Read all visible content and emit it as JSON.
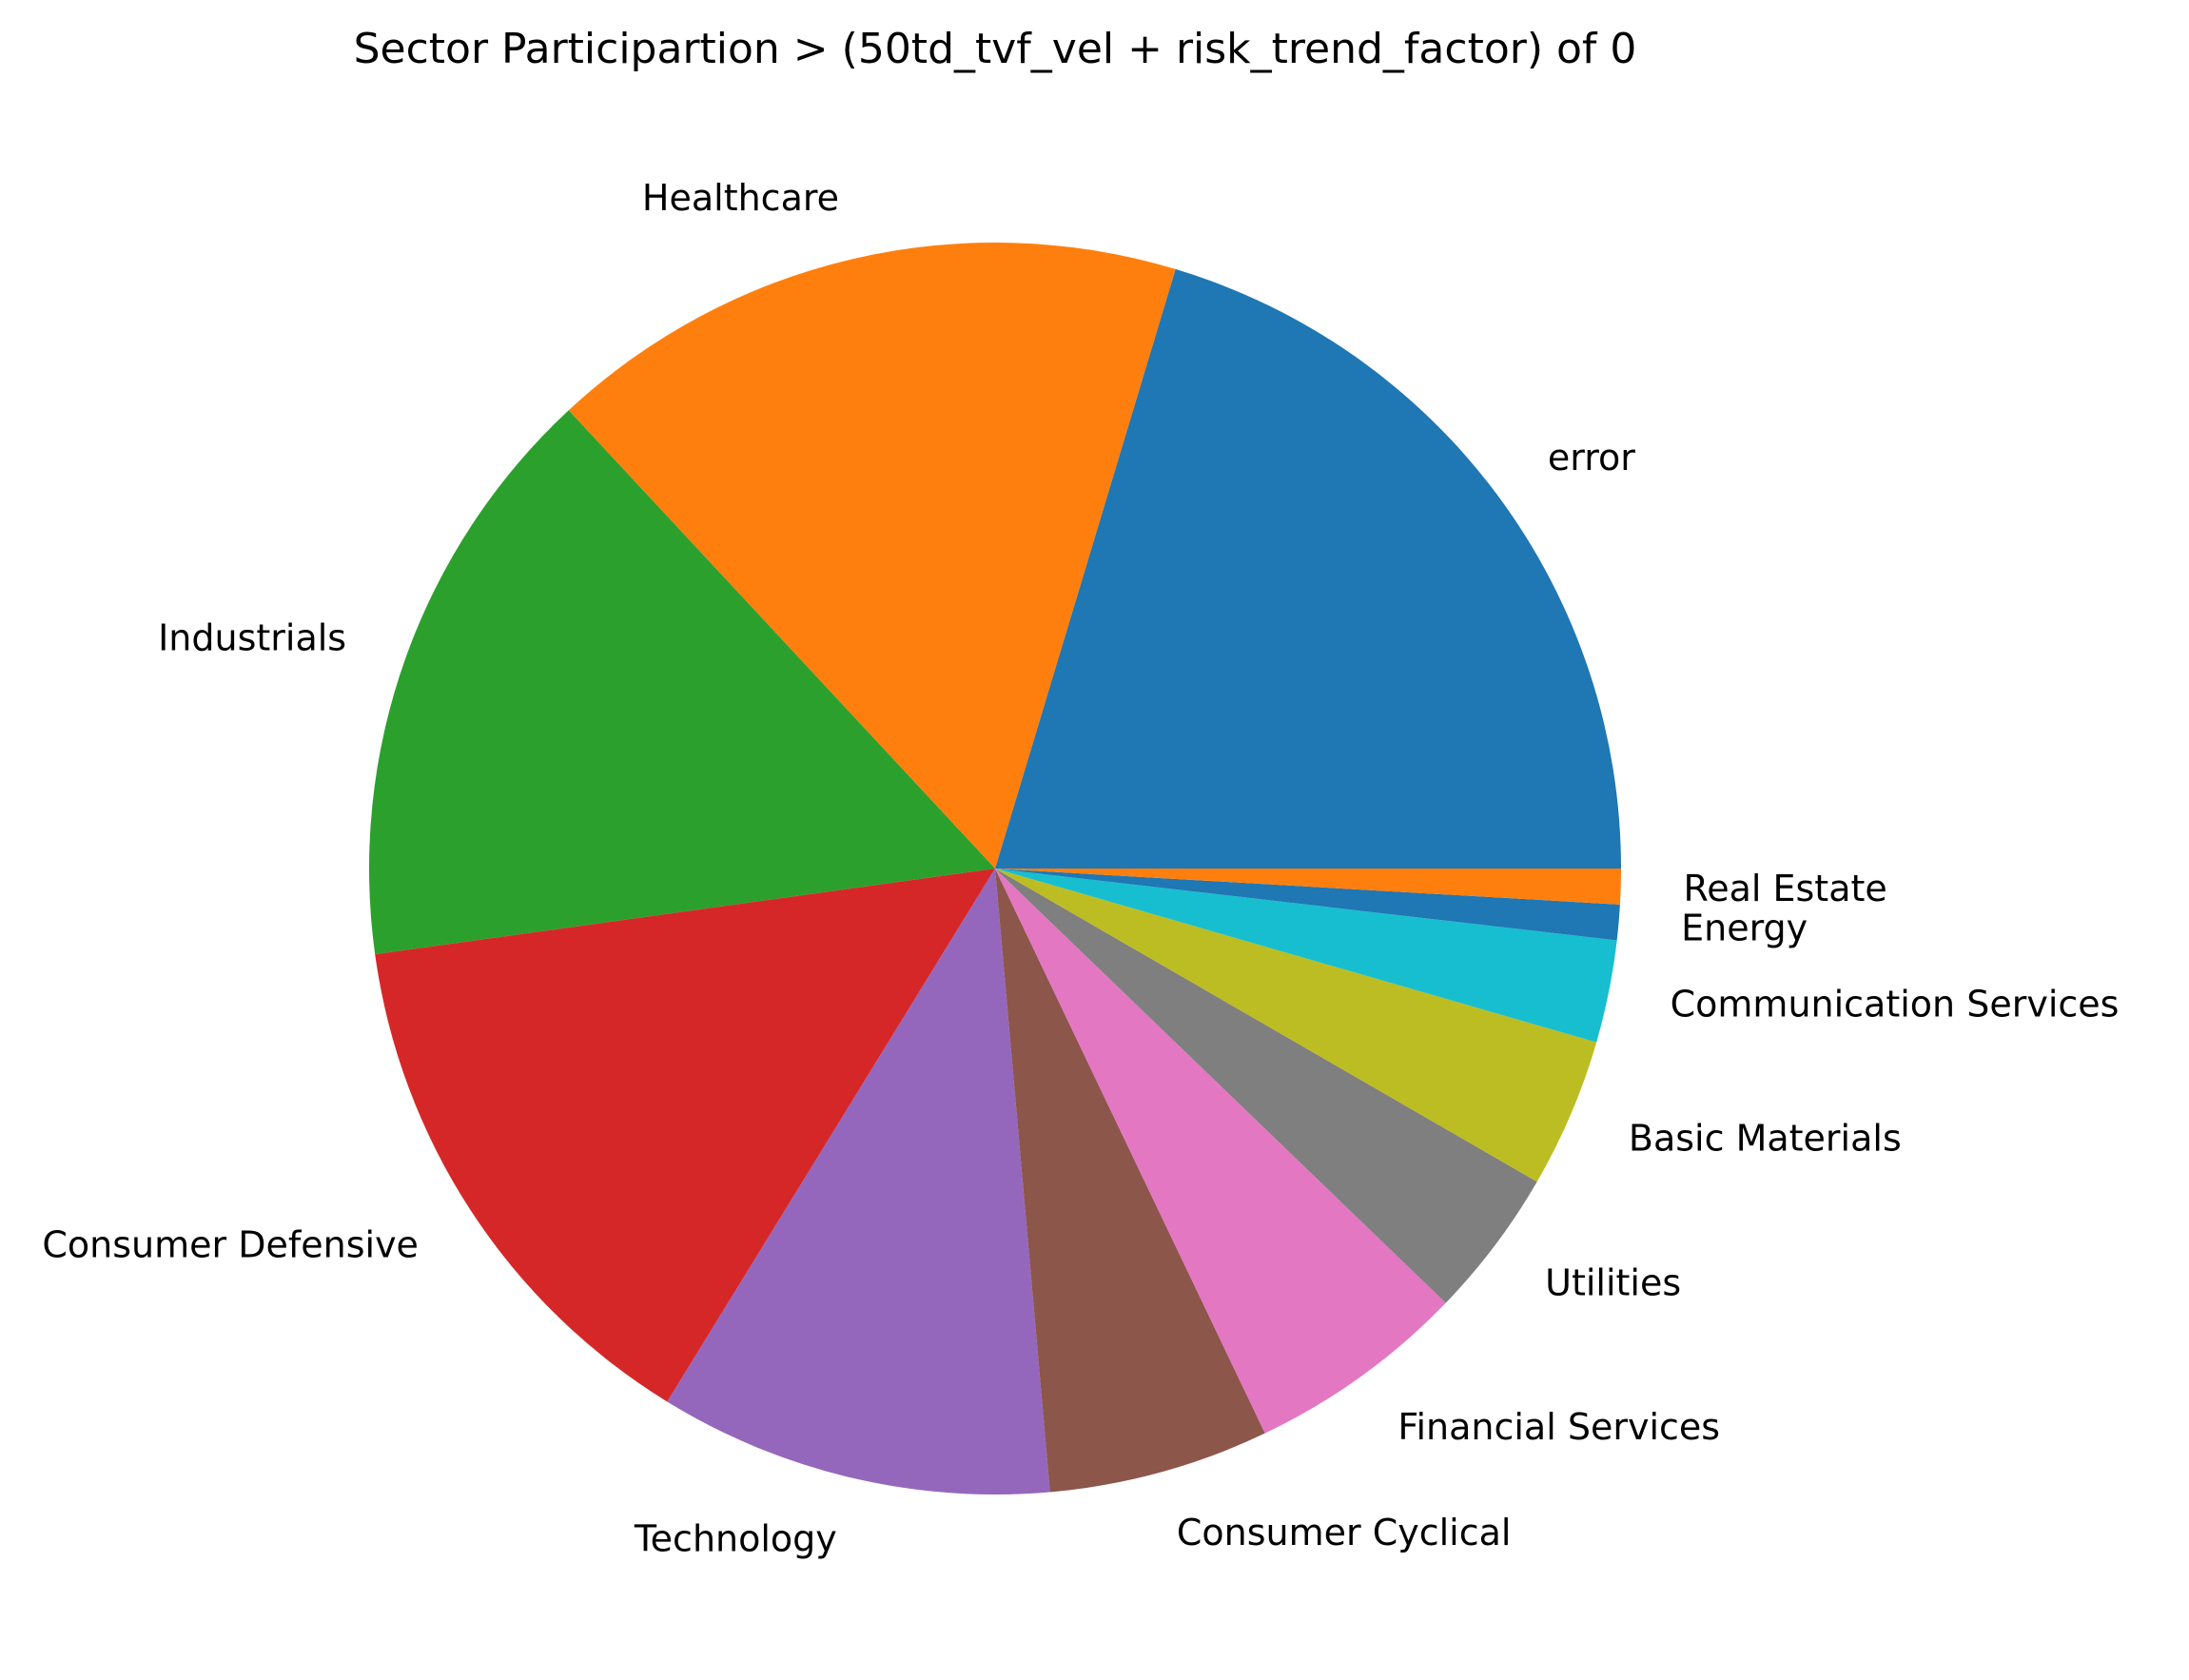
{
  "chart_data": {
    "type": "pie",
    "title": "Sector Participartion > (50td_tvf_vel + risk_trend_factor) of 0",
    "start_angle": 0,
    "direction": "counterclockwise",
    "legend": "none",
    "categories": [
      "error",
      "Healthcare",
      "Industrials",
      "Consumer Defensive",
      "Technology",
      "Consumer Cyclical",
      "Financial Services",
      "Utilities",
      "Basic Materials",
      "Communication Services",
      "Energy",
      "Real Estate"
    ],
    "values": [
      20.0,
      16.3,
      15.0,
      13.8,
      10.0,
      5.6,
      5.6,
      3.8,
      3.8,
      2.6,
      0.9,
      0.9
    ],
    "colors": [
      "#1f77b4",
      "#ff7f0e",
      "#2ca02c",
      "#d62728",
      "#9467bd",
      "#8c564b",
      "#e377c2",
      "#7f7f7f",
      "#bcbd22",
      "#17becf",
      "#1f77b4",
      "#ff7f0e"
    ]
  }
}
